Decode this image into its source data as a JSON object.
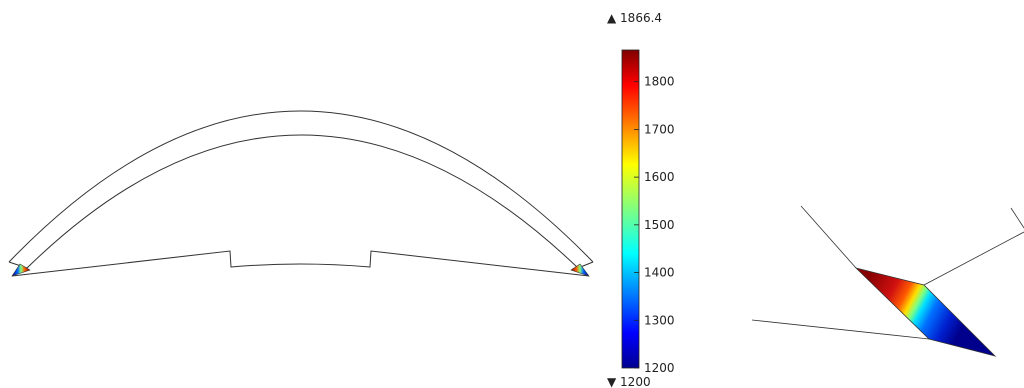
{
  "colorbar": {
    "max_label": "▲ 1866.4",
    "min_label": "▼ 1200",
    "min": 1200,
    "max": 1866.4,
    "ticks": [
      {
        "value": 1800,
        "label": "1800"
      },
      {
        "value": 1700,
        "label": "1700"
      },
      {
        "value": 1600,
        "label": "1600"
      },
      {
        "value": 1500,
        "label": "1500"
      },
      {
        "value": 1400,
        "label": "1400"
      },
      {
        "value": 1300,
        "label": "1300"
      },
      {
        "value": 1200,
        "label": "1200"
      }
    ],
    "colormap": "jet"
  },
  "colors": {
    "outline": "#333333",
    "low": "#000080",
    "high": "#800000"
  }
}
